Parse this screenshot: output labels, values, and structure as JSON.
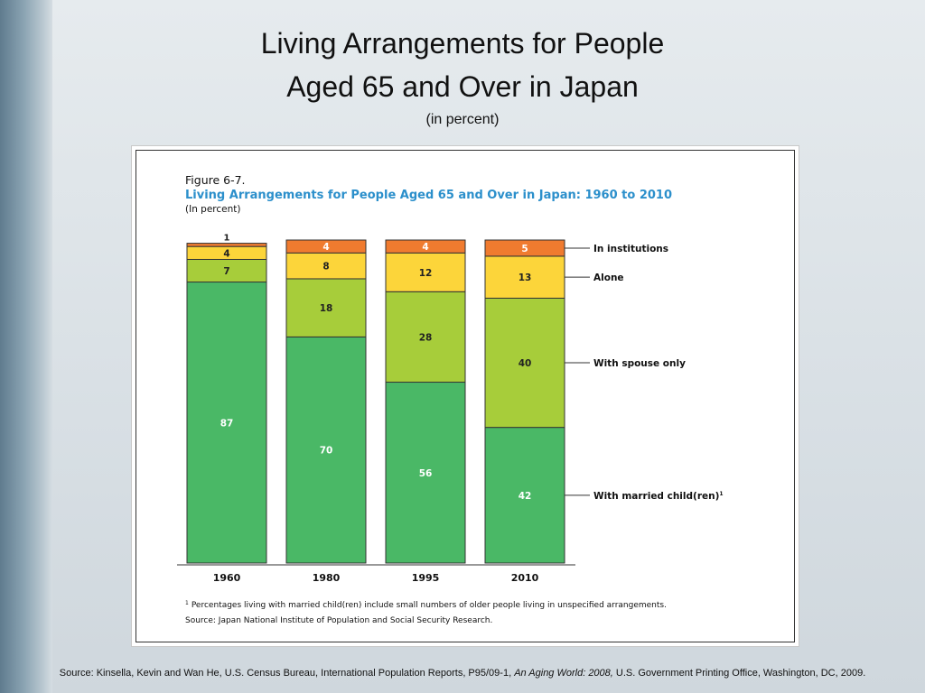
{
  "slide": {
    "title_line1": "Living Arrangements for People",
    "title_line2": "Aged 65 and Over in Japan",
    "subtitle": "(in percent)",
    "source_prefix": "Source: Kinsella, Kevin and Wan He, U.S. Census Bureau, International Population Reports, P95/09-1, ",
    "source_italic": "An Aging World: 2008,",
    "source_suffix": " U.S. Government Printing Office, Washington, DC, 2009."
  },
  "figure": {
    "label": "Figure 6-7.",
    "title": "Living Arrangements for People Aged 65 and Over in Japan: 1960 to 2010",
    "subtitle": "(In percent)",
    "footnote": "Percentages living with married child(ren) include small numbers of older people living in unspecified arrangements.",
    "footnote_mark": "1",
    "source": "Source:  Japan National Institute of Population and Social Security Research."
  },
  "chart_data": {
    "type": "bar",
    "stacked": true,
    "categories": [
      "1960",
      "1980",
      "1995",
      "2010"
    ],
    "ylim": [
      0,
      100
    ],
    "series": [
      {
        "name": "With married child(ren)",
        "label_suffix": "1",
        "color": "#4ab866",
        "values": [
          87,
          70,
          56,
          42
        ]
      },
      {
        "name": "With spouse only",
        "color": "#a7cd3a",
        "values": [
          7,
          18,
          28,
          40
        ]
      },
      {
        "name": "Alone",
        "color": "#fcd53a",
        "values": [
          4,
          8,
          12,
          13
        ]
      },
      {
        "name": "In institutions",
        "color": "#f07b2f",
        "values": [
          1,
          4,
          4,
          5
        ]
      }
    ],
    "legend_position": "right"
  }
}
